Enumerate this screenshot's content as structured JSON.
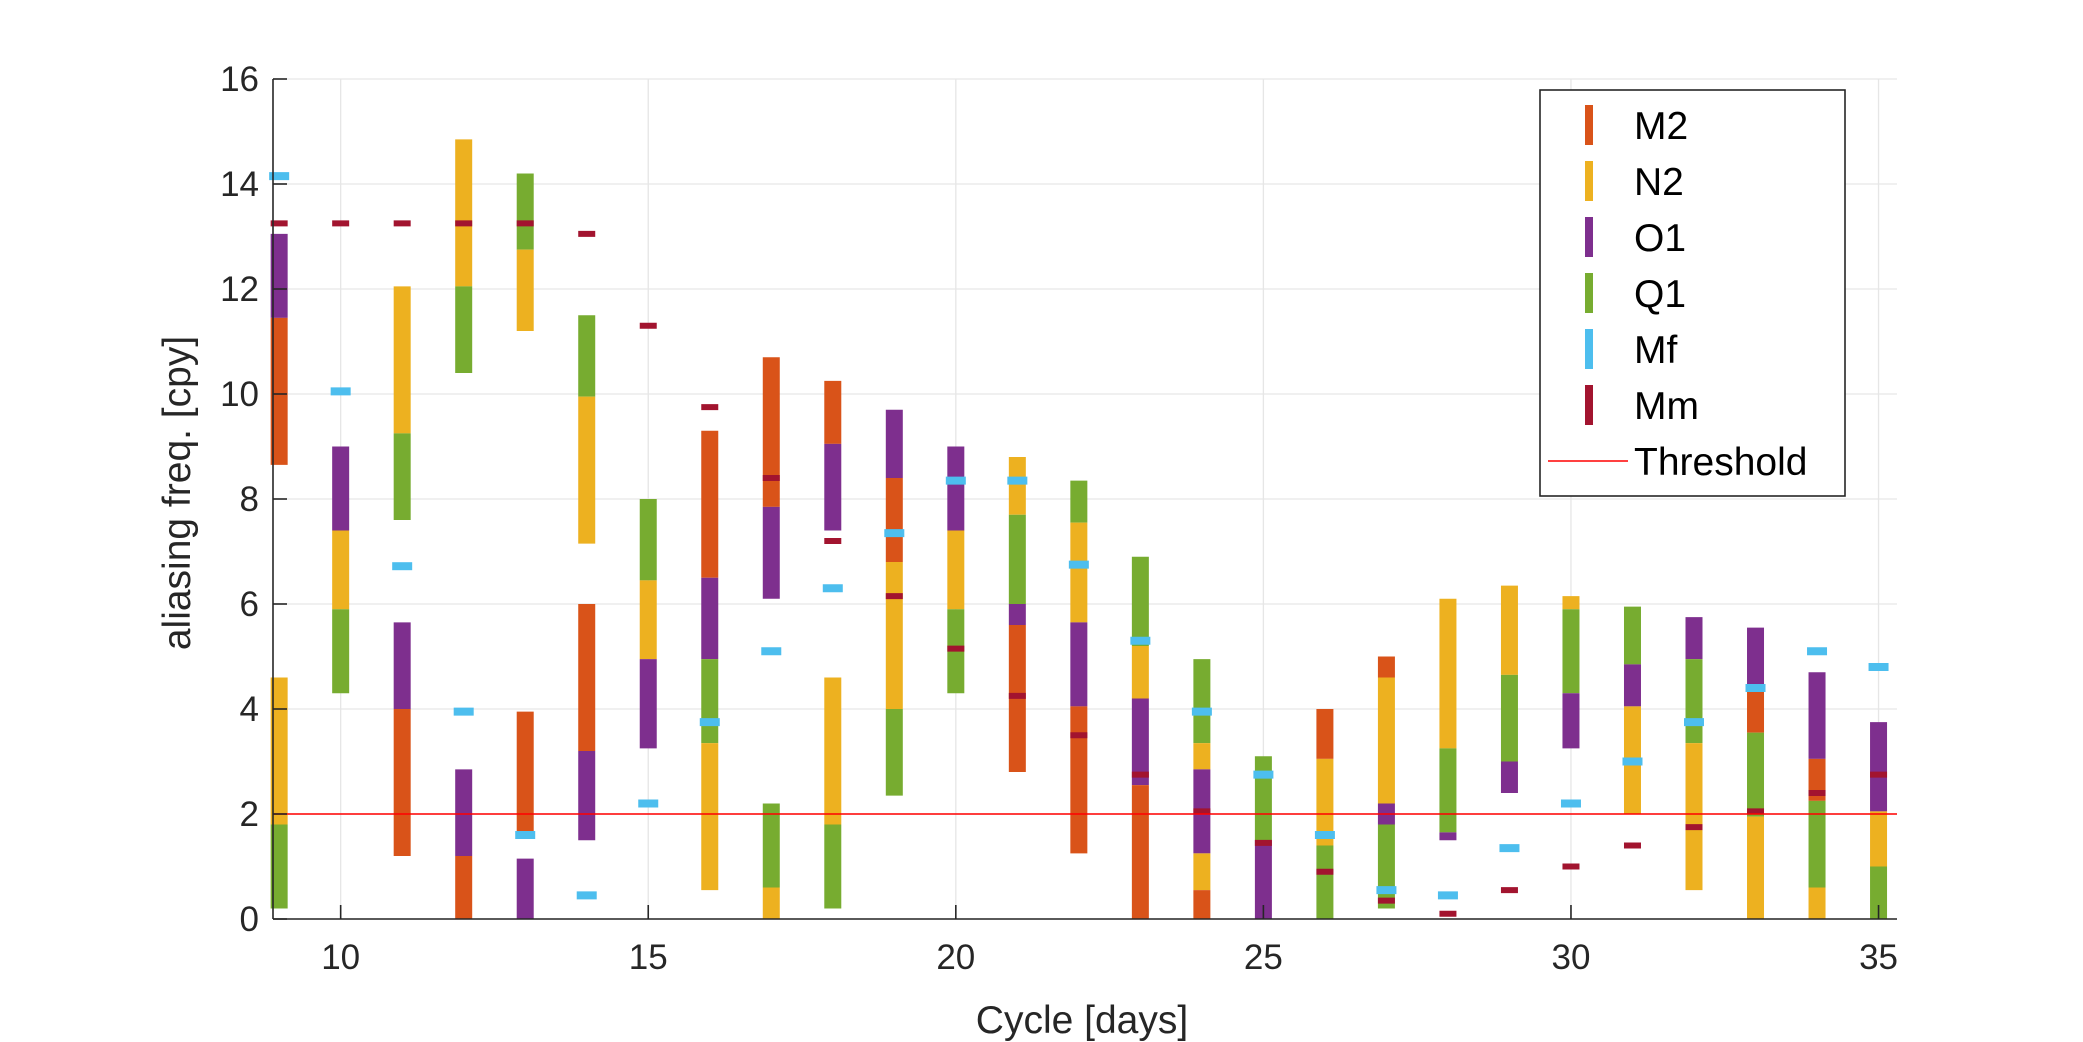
{
  "chart_data": {
    "type": "range-bar",
    "xlabel": "Cycle [days]",
    "ylabel": "aliasing freq. [cpy]",
    "xlim": [
      8.9,
      35.3
    ],
    "ylim": [
      0,
      16
    ],
    "xticks": [
      10,
      15,
      20,
      25,
      30,
      35
    ],
    "yticks": [
      0,
      2,
      4,
      6,
      8,
      10,
      12,
      14,
      16
    ],
    "grid": true,
    "legend_position": "top-right",
    "colors": {
      "M2": "#D95319",
      "N2": "#EDB120",
      "O1": "#7E2F8E",
      "Q1": "#77AC30",
      "Mf": "#4DBEEE",
      "Mm": "#A2142F",
      "Threshold": "#FF0000"
    },
    "legend": [
      {
        "name": "M2",
        "key": "M2",
        "kind": "bar"
      },
      {
        "name": "N2",
        "key": "N2",
        "kind": "bar"
      },
      {
        "name": "O1",
        "key": "O1",
        "kind": "bar"
      },
      {
        "name": "Q1",
        "key": "Q1",
        "kind": "bar"
      },
      {
        "name": "Mf",
        "key": "Mf",
        "kind": "bar"
      },
      {
        "name": "Mm",
        "key": "Mm",
        "kind": "bar"
      },
      {
        "name": "Threshold",
        "key": "Threshold",
        "kind": "line"
      }
    ],
    "threshold": 2.0,
    "bars": [
      {
        "x": 9,
        "s": [
          [
            "N2",
            1.8,
            4.6
          ],
          [
            "Q1",
            0.2,
            1.8
          ],
          [
            "O1",
            11.45,
            13.05
          ],
          [
            "M2",
            8.65,
            11.45
          ]
        ],
        "m": [
          [
            "Mf",
            14.15
          ],
          [
            "Mm",
            13.25
          ]
        ]
      },
      {
        "x": 10,
        "s": [
          [
            "O1",
            7.4,
            9.0
          ],
          [
            "N2",
            5.9,
            7.4
          ],
          [
            "Q1",
            4.3,
            5.9
          ]
        ],
        "m": [
          [
            "Mf",
            10.05
          ],
          [
            "Mm",
            13.25
          ]
        ]
      },
      {
        "x": 11,
        "s": [
          [
            "N2",
            9.25,
            12.05
          ],
          [
            "Q1",
            7.6,
            9.25
          ],
          [
            "O1",
            4.0,
            5.65
          ],
          [
            "M2",
            1.2,
            4.0
          ]
        ],
        "m": [
          [
            "Mf",
            6.72
          ],
          [
            "Mm",
            13.25
          ]
        ]
      },
      {
        "x": 12,
        "s": [
          [
            "N2",
            12.05,
            14.85
          ],
          [
            "Q1",
            10.4,
            12.05
          ],
          [
            "O1",
            1.2,
            2.85
          ],
          [
            "M2",
            0.0,
            1.2
          ]
        ],
        "m": [
          [
            "Mf",
            3.95
          ],
          [
            "Mm",
            13.25
          ]
        ]
      },
      {
        "x": 13,
        "s": [
          [
            "Q1",
            12.75,
            14.2
          ],
          [
            "N2",
            11.2,
            12.75
          ],
          [
            "M2",
            1.55,
            3.95
          ],
          [
            "O1",
            0.0,
            1.15
          ]
        ],
        "m": [
          [
            "Mf",
            1.6
          ],
          [
            "Mm",
            13.25
          ]
        ]
      },
      {
        "x": 14,
        "s": [
          [
            "Q1",
            9.95,
            11.5
          ],
          [
            "N2",
            7.15,
            9.95
          ],
          [
            "M2",
            3.2,
            6.0
          ],
          [
            "O1",
            1.5,
            3.2
          ]
        ],
        "m": [
          [
            "Mf",
            0.45
          ],
          [
            "Mm",
            13.05
          ]
        ]
      },
      {
        "x": 15,
        "s": [
          [
            "Q1",
            6.45,
            8.0
          ],
          [
            "N2",
            4.95,
            6.45
          ],
          [
            "O1",
            3.25,
            4.95
          ]
        ],
        "m": [
          [
            "Mf",
            2.2
          ],
          [
            "Mm",
            11.3
          ]
        ]
      },
      {
        "x": 16,
        "s": [
          [
            "M2",
            6.5,
            9.3
          ],
          [
            "O1",
            4.95,
            6.5
          ],
          [
            "Q1",
            3.35,
            4.95
          ],
          [
            "N2",
            0.55,
            3.35
          ]
        ],
        "m": [
          [
            "Mf",
            3.75
          ],
          [
            "Mm",
            9.75
          ]
        ]
      },
      {
        "x": 17,
        "s": [
          [
            "M2",
            7.85,
            10.7
          ],
          [
            "O1",
            6.1,
            7.85
          ],
          [
            "Q1",
            0.6,
            2.2
          ],
          [
            "N2",
            0.0,
            0.6
          ]
        ],
        "m": [
          [
            "Mf",
            5.1
          ],
          [
            "Mm",
            8.4
          ]
        ]
      },
      {
        "x": 18,
        "s": [
          [
            "M2",
            9.05,
            10.25
          ],
          [
            "O1",
            7.4,
            9.05
          ],
          [
            "N2",
            1.8,
            4.6
          ],
          [
            "Q1",
            0.2,
            1.8
          ]
        ],
        "m": [
          [
            "Mf",
            6.3
          ],
          [
            "Mm",
            7.2
          ]
        ]
      },
      {
        "x": 19,
        "s": [
          [
            "O1",
            8.4,
            9.7
          ],
          [
            "M2",
            6.8,
            8.4
          ],
          [
            "N2",
            4.0,
            6.8
          ],
          [
            "Q1",
            2.35,
            4.0
          ]
        ],
        "m": [
          [
            "Mf",
            7.35
          ],
          [
            "Mm",
            6.15
          ]
        ]
      },
      {
        "x": 20,
        "s": [
          [
            "O1",
            7.4,
            9.0
          ],
          [
            "N2",
            5.9,
            7.4
          ],
          [
            "Q1",
            4.3,
            5.9
          ]
        ],
        "m": [
          [
            "Mf",
            8.35
          ],
          [
            "Mm",
            5.15
          ]
        ]
      },
      {
        "x": 21,
        "s": [
          [
            "N2",
            7.7,
            8.8
          ],
          [
            "Q1",
            6.0,
            7.7
          ],
          [
            "O1",
            5.6,
            6.0
          ],
          [
            "M2",
            2.8,
            5.6
          ]
        ],
        "m": [
          [
            "Mf",
            8.35
          ],
          [
            "Mm",
            4.25
          ]
        ]
      },
      {
        "x": 22,
        "s": [
          [
            "Q1",
            7.55,
            8.35
          ],
          [
            "N2",
            5.65,
            7.55
          ],
          [
            "O1",
            4.05,
            5.65
          ],
          [
            "M2",
            1.25,
            4.05
          ]
        ],
        "m": [
          [
            "Mf",
            6.75
          ],
          [
            "Mm",
            3.5
          ]
        ]
      },
      {
        "x": 23,
        "s": [
          [
            "Q1",
            5.2,
            6.9
          ],
          [
            "N2",
            4.2,
            5.2
          ],
          [
            "O1",
            2.55,
            4.2
          ],
          [
            "M2",
            0.0,
            2.55
          ]
        ],
        "m": [
          [
            "Mf",
            5.3
          ],
          [
            "Mm",
            2.75
          ]
        ]
      },
      {
        "x": 24,
        "s": [
          [
            "Q1",
            3.35,
            4.95
          ],
          [
            "N2",
            2.85,
            3.35
          ],
          [
            "O1",
            1.25,
            2.85
          ],
          [
            "N2",
            0.55,
            1.25
          ],
          [
            "M2",
            0.0,
            0.55
          ]
        ],
        "m": [
          [
            "Mf",
            3.95
          ],
          [
            "Mm",
            2.05
          ]
        ]
      },
      {
        "x": 25,
        "s": [
          [
            "Q1",
            1.5,
            3.1
          ],
          [
            "O1",
            0.0,
            1.5
          ]
        ],
        "m": [
          [
            "Mf",
            2.75
          ],
          [
            "Mm",
            1.45
          ]
        ]
      },
      {
        "x": 26,
        "s": [
          [
            "M2",
            3.05,
            4.0
          ],
          [
            "N2",
            1.4,
            3.05
          ],
          [
            "Q1",
            0.0,
            1.4
          ]
        ],
        "m": [
          [
            "Mf",
            1.6
          ],
          [
            "Mm",
            0.9
          ]
        ]
      },
      {
        "x": 27,
        "s": [
          [
            "M2",
            4.6,
            5.0
          ],
          [
            "N2",
            2.2,
            4.6
          ],
          [
            "O1",
            1.8,
            2.2
          ],
          [
            "Q1",
            0.2,
            1.8
          ]
        ],
        "m": [
          [
            "Mf",
            0.55
          ],
          [
            "Mm",
            0.35
          ]
        ]
      },
      {
        "x": 28,
        "s": [
          [
            "N2",
            3.25,
            6.1
          ],
          [
            "Q1",
            1.65,
            3.25
          ],
          [
            "O1",
            1.5,
            1.65
          ]
        ],
        "m": [
          [
            "Mf",
            0.45
          ],
          [
            "Mm",
            0.1
          ]
        ]
      },
      {
        "x": 29,
        "s": [
          [
            "N2",
            4.65,
            6.35
          ],
          [
            "Q1",
            3.0,
            4.65
          ],
          [
            "O1",
            2.4,
            3.0
          ]
        ],
        "m": [
          [
            "Mf",
            1.35
          ],
          [
            "Mm",
            0.55
          ]
        ]
      },
      {
        "x": 30,
        "s": [
          [
            "N2",
            5.9,
            6.15
          ],
          [
            "Q1",
            4.3,
            5.9
          ],
          [
            "O1",
            3.25,
            4.3
          ]
        ],
        "m": [
          [
            "Mf",
            2.2
          ],
          [
            "Mm",
            1.0
          ]
        ]
      },
      {
        "x": 31,
        "s": [
          [
            "Q1",
            4.85,
            5.95
          ],
          [
            "O1",
            4.05,
            4.85
          ],
          [
            "N2",
            2.0,
            4.05
          ]
        ],
        "m": [
          [
            "Mf",
            3.0
          ],
          [
            "Mm",
            1.4
          ]
        ]
      },
      {
        "x": 32,
        "s": [
          [
            "O1",
            4.95,
            5.75
          ],
          [
            "Q1",
            3.35,
            4.95
          ],
          [
            "N2",
            0.55,
            3.35
          ]
        ],
        "m": [
          [
            "Mf",
            3.75
          ],
          [
            "Mm",
            1.75
          ]
        ]
      },
      {
        "x": 33,
        "s": [
          [
            "O1",
            4.4,
            5.55
          ],
          [
            "M2",
            3.55,
            4.4
          ],
          [
            "Q1",
            1.95,
            3.55
          ],
          [
            "N2",
            0.0,
            1.95
          ]
        ],
        "m": [
          [
            "Mf",
            4.4
          ],
          [
            "Mm",
            2.05
          ]
        ]
      },
      {
        "x": 34,
        "s": [
          [
            "O1",
            3.05,
            4.7
          ],
          [
            "M2",
            2.25,
            3.05
          ],
          [
            "Q1",
            0.6,
            2.25
          ],
          [
            "N2",
            0.0,
            0.6
          ]
        ],
        "m": [
          [
            "Mf",
            5.1
          ],
          [
            "Mm",
            2.4
          ]
        ]
      },
      {
        "x": 35,
        "s": [
          [
            "O1",
            2.05,
            3.75
          ],
          [
            "N2",
            1.0,
            2.05
          ],
          [
            "Q1",
            0.0,
            1.0
          ]
        ],
        "m": [
          [
            "Mf",
            4.8
          ],
          [
            "Mm",
            2.75
          ]
        ]
      }
    ]
  }
}
